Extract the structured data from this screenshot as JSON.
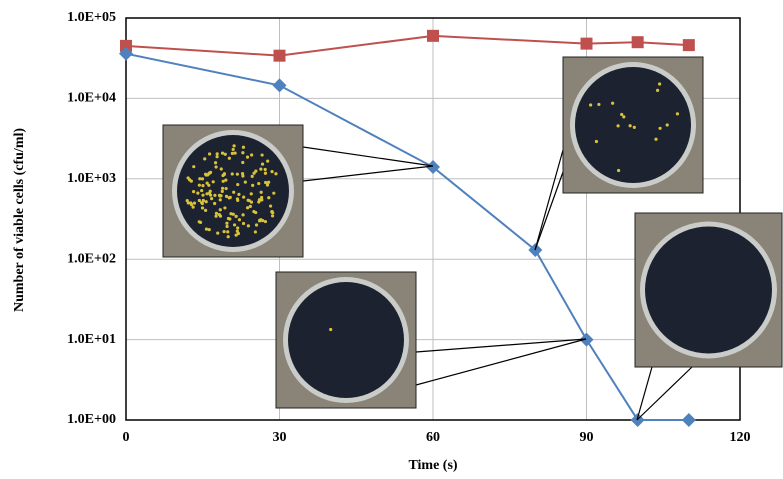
{
  "chart_data": {
    "type": "line",
    "x_label": "Time (s)",
    "y_label": "Number of viable cells (cfu/ml)",
    "log_y": true,
    "grid": true,
    "xlim": [
      0,
      120
    ],
    "xticks": [
      0,
      30,
      60,
      90,
      120
    ],
    "ylim": [
      1,
      100000
    ],
    "yticks": [
      {
        "value": 1,
        "label": "1.0E+00"
      },
      {
        "value": 10,
        "label": "1.0E+01"
      },
      {
        "value": 100,
        "label": "1.0E+02"
      },
      {
        "value": 1000,
        "label": "1.0E+03"
      },
      {
        "value": 10000,
        "label": "1.0E+04"
      },
      {
        "value": 100000,
        "label": "1.0E+05"
      }
    ],
    "series": [
      {
        "color": "#c0504d",
        "marker": "square",
        "x": [
          0,
          30,
          60,
          90,
          100,
          110
        ],
        "values": [
          45000,
          34000,
          60000,
          48000,
          50000,
          46000
        ]
      },
      {
        "color": "#4f81bd",
        "marker": "diamond",
        "x": [
          0,
          30,
          60,
          80,
          90,
          100,
          110
        ],
        "values": [
          36000,
          14500,
          1400,
          130,
          10,
          1,
          1
        ]
      }
    ]
  }
}
